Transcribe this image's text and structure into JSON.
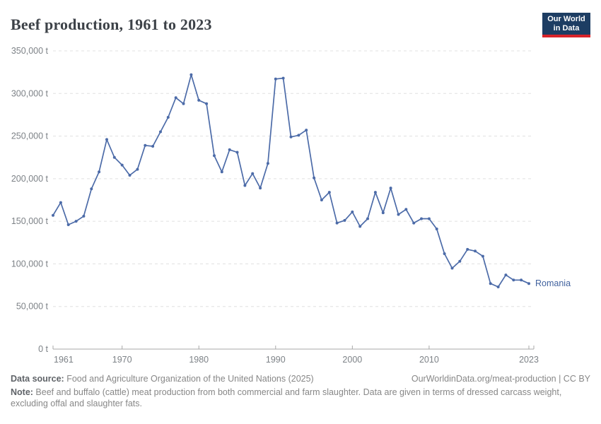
{
  "header": {
    "title": "Beef production, 1961 to 2023",
    "logo": {
      "line1": "Our World",
      "line2": "in Data"
    }
  },
  "colors": {
    "line": "#4c6ba8",
    "entity_label": "#41629e",
    "grid": "#e0e0e0",
    "axis": "#a8a8a8",
    "tick_text": "#7d8287",
    "logo_bg": "#1d3d63",
    "logo_accent": "#d8232a"
  },
  "chart_data": {
    "type": "line",
    "title": "Beef production, 1961 to 2023",
    "entity": "Romania",
    "unit": "t",
    "ylabel": "",
    "xlabel": "",
    "ylim": [
      0,
      350000
    ],
    "xlim": [
      1961,
      2023
    ],
    "grid": "horizontal-dashed",
    "legend": "end-of-line-label",
    "y_ticks": [
      0,
      50000,
      100000,
      150000,
      200000,
      250000,
      300000,
      350000
    ],
    "y_tick_labels": [
      "0 t",
      "50,000 t",
      "100,000 t",
      "150,000 t",
      "200,000 t",
      "250,000 t",
      "300,000 t",
      "350,000 t"
    ],
    "x_ticks": [
      1961,
      1970,
      1980,
      1990,
      2000,
      2010,
      2023
    ],
    "x_tick_labels": [
      "1961",
      "1970",
      "1980",
      "1990",
      "2000",
      "2010",
      "2023"
    ],
    "x": [
      1961,
      1962,
      1963,
      1964,
      1965,
      1966,
      1967,
      1968,
      1969,
      1970,
      1971,
      1972,
      1973,
      1974,
      1975,
      1976,
      1977,
      1978,
      1979,
      1980,
      1981,
      1982,
      1983,
      1984,
      1985,
      1986,
      1987,
      1988,
      1989,
      1990,
      1991,
      1992,
      1993,
      1994,
      1995,
      1996,
      1997,
      1998,
      1999,
      2000,
      2001,
      2002,
      2003,
      2004,
      2005,
      2006,
      2007,
      2008,
      2009,
      2010,
      2011,
      2012,
      2013,
      2014,
      2015,
      2016,
      2017,
      2018,
      2019,
      2020,
      2021,
      2022,
      2023
    ],
    "series": [
      {
        "name": "Romania",
        "values": [
          157000,
          172000,
          146000,
          150000,
          156000,
          188000,
          208000,
          246000,
          225000,
          216000,
          204000,
          211000,
          239000,
          238000,
          255000,
          272000,
          295000,
          288000,
          322000,
          292000,
          288000,
          227000,
          208000,
          234000,
          231000,
          192000,
          206000,
          189000,
          218000,
          317000,
          318000,
          249000,
          251000,
          257000,
          201000,
          175000,
          184000,
          148000,
          151000,
          161000,
          144000,
          153000,
          184000,
          160000,
          189000,
          158000,
          164000,
          148000,
          153000,
          153000,
          141000,
          112000,
          95000,
          103000,
          117000,
          115000,
          109000,
          77000,
          73000,
          87000,
          81000,
          81000,
          77000
        ]
      }
    ]
  },
  "footer": {
    "source_label": "Data source:",
    "source_text": " Food and Agriculture Organization of the United Nations (2025)",
    "link_text": "OurWorldinData.org/meat-production | CC BY",
    "note_label": "Note:",
    "note_text": " Beef and buffalo (cattle) meat production from both commercial and farm slaughter. Data are given in terms of dressed carcass weight, excluding offal and slaughter fats."
  }
}
